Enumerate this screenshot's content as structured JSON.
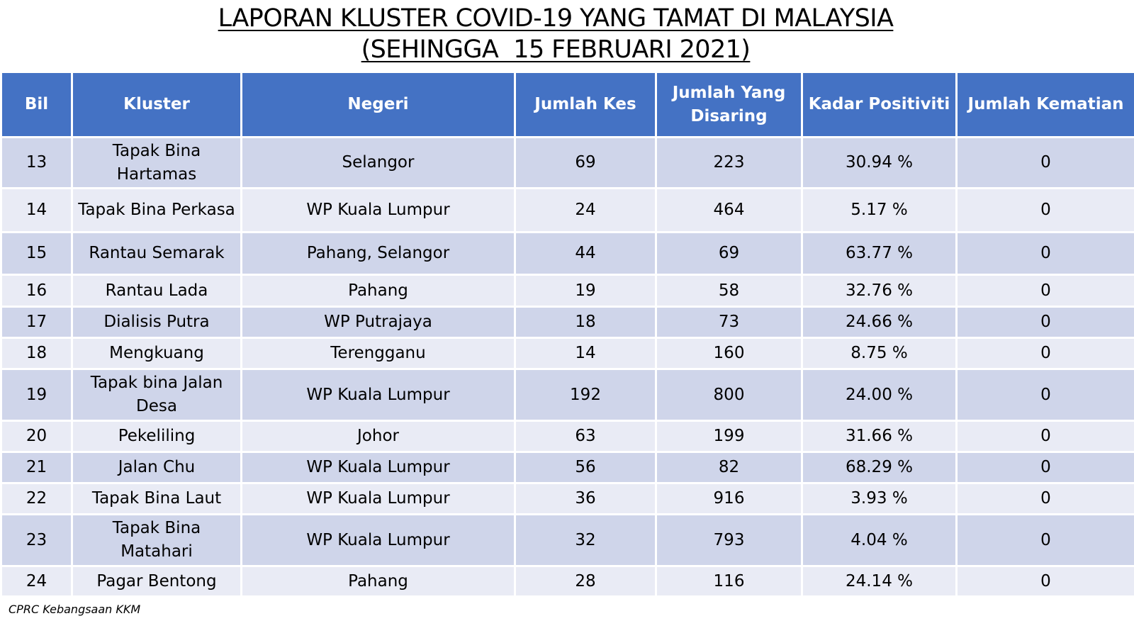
{
  "title": {
    "line1": "LAPORAN KLUSTER COVID-19 YANG TAMAT DI MALAYSIA",
    "line2": "(SEHINGGA  15 FEBRUARI 2021)"
  },
  "table": {
    "headers": [
      "Bil",
      "Kluster",
      "Negeri",
      "Jumlah Kes",
      "Jumlah Yang Disaring",
      "Kadar Positiviti",
      "Jumlah Kematian"
    ],
    "rows": [
      [
        "13",
        "Tapak Bina Hartamas",
        "Selangor",
        "69",
        "223",
        "30.94 %",
        "0"
      ],
      [
        "14",
        "Tapak Bina Perkasa",
        "WP Kuala Lumpur",
        "24",
        "464",
        "5.17 %",
        "0"
      ],
      [
        "15",
        "Rantau Semarak",
        "Pahang, Selangor",
        "44",
        "69",
        "63.77 %",
        "0"
      ],
      [
        "16",
        "Rantau Lada",
        "Pahang",
        "19",
        "58",
        "32.76 %",
        "0"
      ],
      [
        "17",
        "Dialisis Putra",
        "WP Putrajaya",
        "18",
        "73",
        "24.66 %",
        "0"
      ],
      [
        "18",
        "Mengkuang",
        "Terengganu",
        "14",
        "160",
        "8.75 %",
        "0"
      ],
      [
        "19",
        "Tapak bina Jalan Desa",
        "WP Kuala Lumpur",
        "192",
        "800",
        "24.00 %",
        "0"
      ],
      [
        "20",
        "Pekeliling",
        "Johor",
        "63",
        "199",
        "31.66 %",
        "0"
      ],
      [
        "21",
        "Jalan Chu",
        "WP Kuala Lumpur",
        "56",
        "82",
        "68.29 %",
        "0"
      ],
      [
        "22",
        "Tapak Bina Laut",
        "WP Kuala Lumpur",
        "36",
        "916",
        "3.93 %",
        "0"
      ],
      [
        "23",
        "Tapak Bina Matahari",
        "WP Kuala Lumpur",
        "32",
        "793",
        "4.04 %",
        "0"
      ],
      [
        "24",
        "Pagar Bentong",
        "Pahang",
        "28",
        "116",
        "24.14 %",
        "0"
      ]
    ]
  },
  "footer": "CPRC Kebangsaan KKM"
}
